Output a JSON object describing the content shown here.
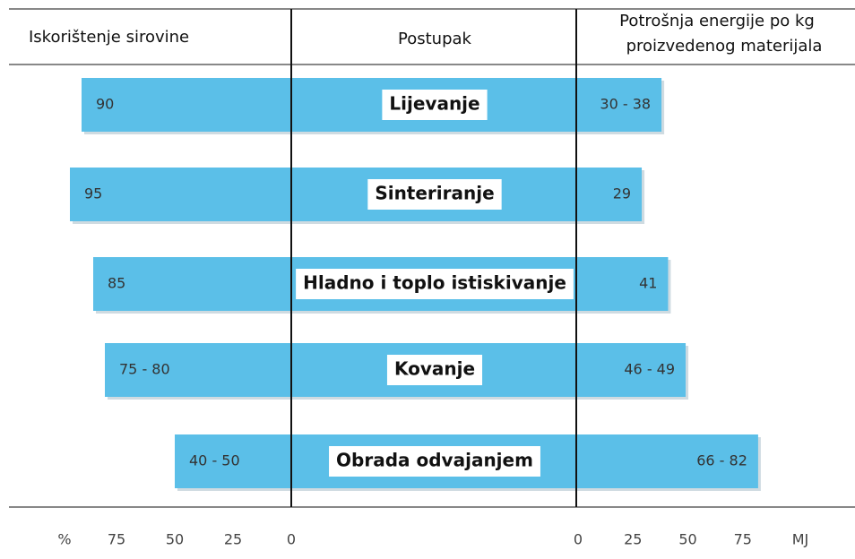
{
  "header": {
    "left": "Iskorištenje sirovine",
    "center": "Postupak",
    "right": [
      "Potrošnja energije po kg",
      "proizvedenog materijala"
    ]
  },
  "chart_data": {
    "type": "butterfly",
    "color": "#5bbfe8",
    "categories": [
      "Lijevanje",
      "Sinteriranje",
      "Hladno i toplo istiskivanje",
      "Kovanje",
      "Obrada odvajanjem"
    ],
    "left": {
      "low": [
        90,
        95,
        85,
        75,
        40
      ],
      "high": [
        90,
        95,
        85,
        80,
        50
      ],
      "value_labels": [
        "90",
        "95",
        "85",
        "75 - 80",
        "40 - 50"
      ],
      "xlim": [
        0,
        100
      ],
      "xticks": [
        75,
        50,
        25,
        0
      ],
      "unit": "%"
    },
    "right": {
      "low": [
        30,
        29,
        41,
        46,
        66
      ],
      "high": [
        38,
        29,
        41,
        49,
        82
      ],
      "value_labels": [
        "30 - 38",
        "29",
        "41",
        "46 - 49",
        "66 - 82"
      ],
      "xlim": [
        0,
        100
      ],
      "xticks": [
        0,
        25,
        50,
        75
      ],
      "unit": "MJ"
    }
  }
}
